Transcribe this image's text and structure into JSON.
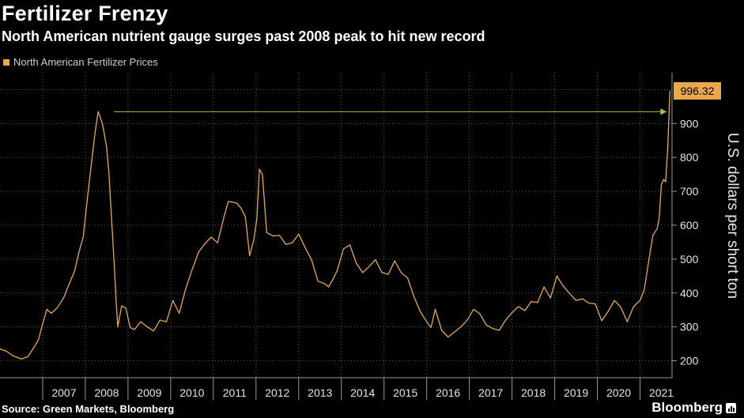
{
  "chart_data": {
    "type": "line",
    "title": "Fertilizer Frenzy",
    "subtitle": "North American nutrient gauge surges past 2008 peak to hit new record",
    "ylabel": "U.S. dollars per short ton",
    "ylim": [
      150,
      1050
    ],
    "yticks": [
      200,
      300,
      400,
      500,
      600,
      700,
      800,
      900
    ],
    "xlim": [
      2006.0,
      2021.75
    ],
    "x_tick_labels": [
      "2007",
      "2008",
      "2009",
      "2010",
      "2011",
      "2012",
      "2013",
      "2014",
      "2015",
      "2016",
      "2017",
      "2018",
      "2019",
      "2020",
      "2021"
    ],
    "grid": true,
    "legend_position": "top-left",
    "last_value_label": "996.32",
    "annotation": "arrow from 2008 peak to 2021 record",
    "series": [
      {
        "name": "North American Fertilizer Prices",
        "color": "#e8a94d",
        "x": [
          2006.0,
          2006.15,
          2006.3,
          2006.5,
          2006.65,
          2006.8,
          2006.9,
          2007.0,
          2007.1,
          2007.2,
          2007.35,
          2007.5,
          2007.6,
          2007.75,
          2007.85,
          2007.95,
          2008.05,
          2008.15,
          2008.22,
          2008.3,
          2008.4,
          2008.5,
          2008.55,
          2008.6,
          2008.68,
          2008.72,
          2008.76,
          2008.85,
          2008.95,
          2009.05,
          2009.15,
          2009.3,
          2009.45,
          2009.6,
          2009.75,
          2009.9,
          2010.05,
          2010.2,
          2010.35,
          2010.5,
          2010.65,
          2010.8,
          2010.95,
          2011.1,
          2011.25,
          2011.35,
          2011.45,
          2011.55,
          2011.65,
          2011.75,
          2011.85,
          2011.95,
          2012.02,
          2012.08,
          2012.15,
          2012.25,
          2012.4,
          2012.55,
          2012.7,
          2012.85,
          2013.0,
          2013.15,
          2013.3,
          2013.45,
          2013.6,
          2013.7,
          2013.8,
          2013.9,
          2014.05,
          2014.2,
          2014.35,
          2014.5,
          2014.65,
          2014.8,
          2014.95,
          2015.1,
          2015.25,
          2015.4,
          2015.55,
          2015.7,
          2015.85,
          2016.0,
          2016.1,
          2016.2,
          2016.35,
          2016.5,
          2016.65,
          2016.8,
          2016.95,
          2017.1,
          2017.25,
          2017.4,
          2017.55,
          2017.7,
          2017.85,
          2018.0,
          2018.15,
          2018.3,
          2018.45,
          2018.6,
          2018.75,
          2018.9,
          2019.05,
          2019.2,
          2019.35,
          2019.5,
          2019.65,
          2019.8,
          2019.95,
          2020.1,
          2020.25,
          2020.4,
          2020.55,
          2020.7,
          2020.85,
          2021.0,
          2021.1,
          2021.2,
          2021.3,
          2021.4,
          2021.45,
          2021.5,
          2021.55,
          2021.6,
          2021.65,
          2021.7
        ],
        "y": [
          235,
          228,
          215,
          205,
          212,
          240,
          262,
          310,
          352,
          340,
          358,
          388,
          420,
          465,
          520,
          565,
          680,
          790,
          865,
          935,
          900,
          830,
          760,
          650,
          480,
          380,
          300,
          362,
          355,
          298,
          292,
          315,
          300,
          288,
          320,
          315,
          378,
          340,
          412,
          468,
          520,
          545,
          565,
          548,
          625,
          670,
          668,
          665,
          650,
          625,
          510,
          558,
          620,
          765,
          750,
          578,
          568,
          570,
          543,
          548,
          574,
          534,
          498,
          435,
          428,
          418,
          440,
          465,
          530,
          542,
          488,
          460,
          478,
          498,
          460,
          455,
          495,
          460,
          445,
          390,
          345,
          315,
          298,
          352,
          290,
          270,
          285,
          300,
          320,
          352,
          338,
          305,
          295,
          290,
          320,
          342,
          360,
          348,
          375,
          372,
          418,
          385,
          450,
          420,
          398,
          378,
          383,
          370,
          368,
          318,
          345,
          378,
          358,
          315,
          360,
          378,
          410,
          492,
          570,
          590,
          622,
          720,
          735,
          728,
          830,
          996.32
        ]
      }
    ]
  }
}
